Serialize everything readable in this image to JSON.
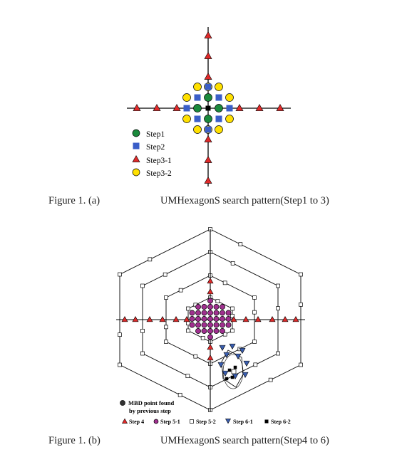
{
  "figure_a": {
    "legend": [
      {
        "label": "Step1",
        "symbol": "circle",
        "color": "#1a8a3c"
      },
      {
        "label": "Step2",
        "symbol": "square",
        "color": "#3a5ec8"
      },
      {
        "label": "Step3-1",
        "symbol": "triangle",
        "color": "#e02a2a"
      },
      {
        "label": "Step3-2",
        "symbol": "circle",
        "color": "#ffe000"
      }
    ],
    "caption_left": "Figure 1. (a)",
    "caption_right": "UMHexagonS search pattern(Step1 to 3)"
  },
  "figure_b": {
    "mbd_label_line1": "MBD point found",
    "mbd_label_line2": "by previous step",
    "legend": [
      {
        "label": "Step 4",
        "symbol": "triangle",
        "color": "#e02a2a"
      },
      {
        "label": "Step 5-1",
        "symbol": "circle",
        "color": "#a0308f"
      },
      {
        "label": "Step 5-2",
        "symbol": "square-open",
        "color": "#000000"
      },
      {
        "label": "Step 6-1",
        "symbol": "triangle-down",
        "color": "#3a5eb0"
      },
      {
        "label": "Step 6-2",
        "symbol": "square",
        "color": "#000000"
      }
    ],
    "caption_left": "Figure 1. (b)",
    "caption_right": "UMHexagonS search pattern(Step4 to 6)"
  }
}
